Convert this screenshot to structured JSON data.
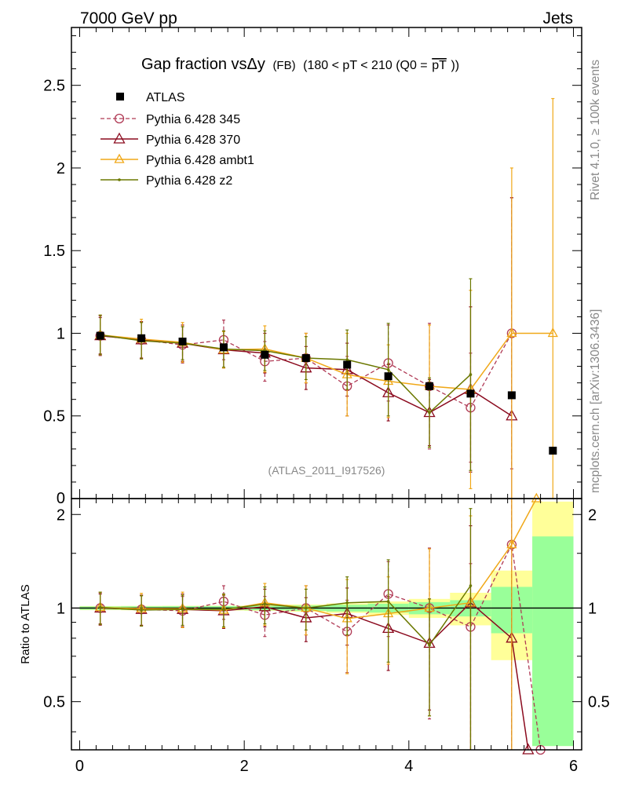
{
  "header": {
    "left": "7000 GeV pp",
    "right": "Jets"
  },
  "side_labels": {
    "rivet": "Rivet 4.1.0, ≥ 100k events",
    "mcplots": "mcplots.cern.ch [arXiv:1306.3436]"
  },
  "colors": {
    "atlas": "#000000",
    "p345": "#b03a55",
    "p370": "#8b0a1e",
    "ambt1": "#f0a818",
    "z2": "#6b7800",
    "band_green": "#99ff99",
    "band_yellow": "#ffff99"
  },
  "chart_data": [
    {
      "type": "line",
      "title_main": "Gap fraction vsΔy",
      "title_small": "(FB)",
      "title_tail": "(180 < pT < 210 (Q0 =",
      "title_overline": "pT",
      "title_close": "))",
      "watermark": "(ATLAS_2011_I917526)",
      "xlim": [
        -0.1,
        6.1
      ],
      "ylim": [
        0,
        2.85
      ],
      "yticks": [
        0.5,
        1,
        1.5,
        2,
        2.5
      ],
      "yticklabels": [
        "0.5",
        "1",
        "1.5",
        "2",
        "2.5"
      ],
      "cut_tick_label": "0",
      "legend_position": "top-left",
      "series": [
        {
          "name": "ATLAS",
          "style": "square",
          "x": [
            0.25,
            0.75,
            1.25,
            1.75,
            2.25,
            2.75,
            3.25,
            3.75,
            4.25,
            4.75,
            5.25,
            5.75
          ],
          "y": [
            0.985,
            0.97,
            0.95,
            0.915,
            0.87,
            0.85,
            0.81,
            0.74,
            0.68,
            0.635,
            0.625,
            0.29
          ]
        },
        {
          "name": "Pythia 6.428 345",
          "style": "circle-dashed",
          "x": [
            0.25,
            0.75,
            1.25,
            1.75,
            2.25,
            2.75,
            3.25,
            3.75,
            4.25,
            4.75,
            5.25
          ],
          "y": [
            0.985,
            0.96,
            0.93,
            0.96,
            0.83,
            0.85,
            0.68,
            0.82,
            0.68,
            0.55,
            1.0
          ],
          "err": [
            0.12,
            0.11,
            0.11,
            0.12,
            0.12,
            0.15,
            0.18,
            0.23,
            0.38,
            0.33,
            0.82
          ]
        },
        {
          "name": "Pythia 6.428 370",
          "style": "triangle",
          "x": [
            0.25,
            0.75,
            1.25,
            1.75,
            2.25,
            2.75,
            3.25,
            3.75,
            4.25,
            4.75,
            5.25
          ],
          "y": [
            0.985,
            0.96,
            0.94,
            0.9,
            0.88,
            0.79,
            0.78,
            0.64,
            0.52,
            0.66,
            0.5
          ],
          "err": [
            0.11,
            0.11,
            0.11,
            0.11,
            0.12,
            0.13,
            0.16,
            0.17,
            0.2,
            0.5,
            1.32
          ]
        },
        {
          "name": "Pythia 6.428 ambt1",
          "style": "triangle",
          "x": [
            0.25,
            0.75,
            1.25,
            1.75,
            2.25,
            2.75,
            3.25,
            3.75,
            4.25,
            4.75,
            5.25,
            5.75
          ],
          "y": [
            0.99,
            0.965,
            0.945,
            0.9,
            0.905,
            0.85,
            0.75,
            0.71,
            0.68,
            0.66,
            1.0,
            1.0
          ],
          "err": [
            0.12,
            0.12,
            0.12,
            0.11,
            0.14,
            0.15,
            0.25,
            0.22,
            0.37,
            0.6,
            1.0,
            1.42
          ]
        },
        {
          "name": "Pythia 6.428 z2",
          "style": "dot",
          "x": [
            0.25,
            0.75,
            1.25,
            1.75,
            2.25,
            2.75,
            3.25,
            3.75,
            4.25,
            4.75
          ],
          "y": [
            0.99,
            0.955,
            0.94,
            0.905,
            0.895,
            0.85,
            0.84,
            0.78,
            0.52,
            0.75
          ],
          "err": [
            0.12,
            0.11,
            0.1,
            0.11,
            0.12,
            0.13,
            0.18,
            0.28,
            0.21,
            0.58
          ]
        }
      ]
    },
    {
      "type": "line",
      "ylabel": "Ratio to ATLAS",
      "xlim": [
        -0.1,
        6.1
      ],
      "ylim": [
        0.35,
        2.25
      ],
      "xticks": [
        0,
        2,
        4,
        6
      ],
      "xticklabels": [
        "0",
        "2",
        "4",
        "6"
      ],
      "yticks": [
        0.5,
        1,
        2
      ],
      "yticklabels": [
        "0.5",
        "1",
        "2"
      ],
      "reference_line": 1,
      "bands": {
        "edges": [
          0,
          0.5,
          1,
          1.5,
          2,
          2.5,
          3,
          3.5,
          4,
          4.5,
          5,
          5.5,
          6
        ],
        "green_half": [
          0.012,
          0.013,
          0.014,
          0.015,
          0.016,
          0.02,
          0.025,
          0.033,
          0.045,
          0.06,
          0.17,
          0.7
        ],
        "yellow_half": [
          0.015,
          0.016,
          0.017,
          0.018,
          0.02,
          0.027,
          0.035,
          0.05,
          0.07,
          0.12,
          0.32,
          1.2
        ]
      },
      "series": [
        {
          "name": "Pythia 6.428 345",
          "x": [
            0.25,
            0.75,
            1.25,
            1.75,
            2.25,
            2.75,
            3.25,
            3.75,
            4.25,
            4.75,
            5.25,
            5.6
          ],
          "y": [
            1.0,
            0.99,
            0.98,
            1.05,
            0.95,
            1.0,
            0.84,
            1.11,
            1.0,
            0.87,
            1.6,
            0.35
          ],
          "err": [
            0.12,
            0.11,
            0.11,
            0.13,
            0.14,
            0.18,
            0.22,
            0.3,
            0.56,
            0.52,
            1.3,
            0
          ]
        },
        {
          "name": "Pythia 6.428 370",
          "x": [
            0.25,
            0.75,
            1.25,
            1.75,
            2.25,
            2.75,
            3.25,
            3.75,
            4.25,
            4.75,
            5.25,
            5.45
          ],
          "y": [
            1.0,
            0.99,
            0.99,
            0.98,
            1.01,
            0.93,
            0.96,
            0.86,
            0.77,
            1.04,
            0.8,
            0.35
          ],
          "err": [
            0.11,
            0.11,
            0.12,
            0.12,
            0.14,
            0.15,
            0.2,
            0.23,
            0.3,
            0.8,
            2.1,
            0
          ]
        },
        {
          "name": "Pythia 6.428 ambt1",
          "x": [
            0.25,
            0.75,
            1.25,
            1.75,
            2.25,
            2.75,
            3.25,
            3.75,
            4.25,
            4.75,
            5.25,
            5.55
          ],
          "y": [
            1.005,
            0.995,
            0.995,
            0.985,
            1.04,
            1.0,
            0.925,
            0.96,
            1.0,
            1.04,
            1.6,
            2.25
          ],
          "err": [
            0.12,
            0.12,
            0.13,
            0.12,
            0.16,
            0.18,
            0.31,
            0.3,
            0.55,
            0.94,
            1.6,
            0
          ]
        },
        {
          "name": "Pythia 6.428 z2",
          "x": [
            0.25,
            0.75,
            1.25,
            1.75,
            2.25,
            2.75,
            3.25,
            3.75,
            4.25,
            4.75
          ],
          "y": [
            1.005,
            0.985,
            0.99,
            0.99,
            1.03,
            1.0,
            1.04,
            1.05,
            0.76,
            1.18
          ],
          "err": [
            0.12,
            0.11,
            0.11,
            0.12,
            0.14,
            0.15,
            0.22,
            0.38,
            0.31,
            0.91
          ]
        }
      ]
    }
  ]
}
